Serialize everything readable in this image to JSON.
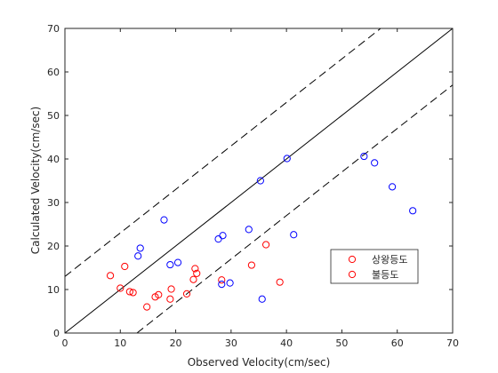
{
  "chart_data": {
    "type": "scatter",
    "xlabel": "Observed Velocity(cm/sec)",
    "ylabel": "Calculated Velocity(cm/sec)",
    "xlim": [
      0,
      70
    ],
    "ylim": [
      0,
      70
    ],
    "xticks": [
      "0",
      "10",
      "20",
      "30",
      "40",
      "50",
      "60",
      "70"
    ],
    "yticks": [
      "0",
      "10",
      "20",
      "30",
      "40",
      "50",
      "60",
      "70"
    ],
    "grid": false,
    "legend_position": "lower-right",
    "reference_lines": [
      {
        "style": "solid",
        "slope": 1,
        "intercept": 0
      },
      {
        "style": "dashed",
        "slope": 1,
        "intercept": 13
      },
      {
        "style": "dashed",
        "slope": 1,
        "intercept": -13
      }
    ],
    "series": [
      {
        "name": "상왕등도",
        "color": "#ff0000",
        "points": [
          [
            8.2,
            13.2
          ],
          [
            10.0,
            10.3
          ],
          [
            10.8,
            15.3
          ],
          [
            11.7,
            9.5
          ],
          [
            12.3,
            9.3
          ],
          [
            14.8,
            6.0
          ],
          [
            16.3,
            8.3
          ],
          [
            16.9,
            8.8
          ],
          [
            19.0,
            7.8
          ],
          [
            19.2,
            10.1
          ],
          [
            22.0,
            9.0
          ],
          [
            23.2,
            12.3
          ],
          [
            23.5,
            14.8
          ],
          [
            23.8,
            13.7
          ],
          [
            28.3,
            12.2
          ],
          [
            33.7,
            15.6
          ],
          [
            36.3,
            20.3
          ],
          [
            38.8,
            11.7
          ]
        ]
      },
      {
        "name": "불등도",
        "color": "#0000ff",
        "points": [
          [
            13.2,
            17.7
          ],
          [
            13.6,
            19.5
          ],
          [
            17.9,
            26.0
          ],
          [
            19.0,
            15.7
          ],
          [
            20.4,
            16.2
          ],
          [
            27.7,
            21.6
          ],
          [
            28.3,
            11.2
          ],
          [
            28.5,
            22.4
          ],
          [
            29.8,
            11.5
          ],
          [
            33.2,
            23.8
          ],
          [
            35.3,
            35.0
          ],
          [
            35.6,
            7.8
          ],
          [
            40.1,
            40.1
          ],
          [
            41.3,
            22.6
          ],
          [
            54.0,
            40.6
          ],
          [
            55.9,
            39.1
          ],
          [
            59.1,
            33.6
          ],
          [
            62.8,
            28.1
          ]
        ]
      }
    ]
  }
}
